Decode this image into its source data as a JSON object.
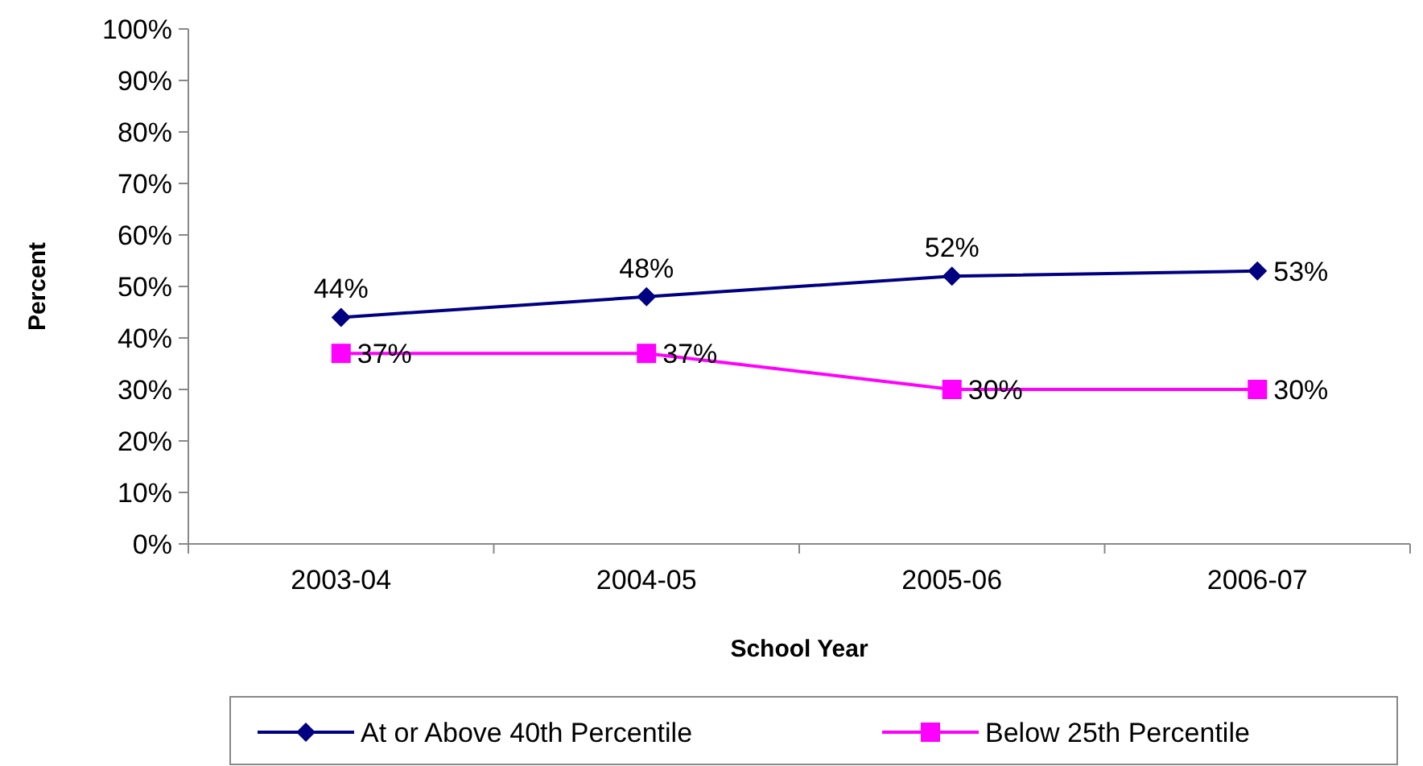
{
  "chart_data": {
    "type": "line",
    "xlabel": "School Year",
    "ylabel": "Percent",
    "categories": [
      "2003-04",
      "2004-05",
      "2005-06",
      "2006-07"
    ],
    "ylim": [
      0,
      100
    ],
    "yticks": [
      {
        "value": 0,
        "label": "0%"
      },
      {
        "value": 10,
        "label": "10%"
      },
      {
        "value": 20,
        "label": "20%"
      },
      {
        "value": 30,
        "label": "30%"
      },
      {
        "value": 40,
        "label": "40%"
      },
      {
        "value": 50,
        "label": "50%"
      },
      {
        "value": 60,
        "label": "60%"
      },
      {
        "value": 70,
        "label": "70%"
      },
      {
        "value": 80,
        "label": "80%"
      },
      {
        "value": 90,
        "label": "90%"
      },
      {
        "value": 100,
        "label": "100%"
      }
    ],
    "grid": false,
    "legend": "bottom",
    "line_style": "solid",
    "series": [
      {
        "name": "At or Above 40th Percentile",
        "color": "#000080",
        "marker": "diamond",
        "values": [
          44,
          48,
          52,
          53
        ],
        "value_labels": [
          "44%",
          "48%",
          "52%",
          "53%"
        ]
      },
      {
        "name": "Below 25th Percentile",
        "color": "#ff00ff",
        "marker": "square",
        "values": [
          37,
          37,
          30,
          30
        ],
        "value_labels": [
          "37%",
          "37%",
          "30%",
          "30%"
        ]
      }
    ]
  }
}
